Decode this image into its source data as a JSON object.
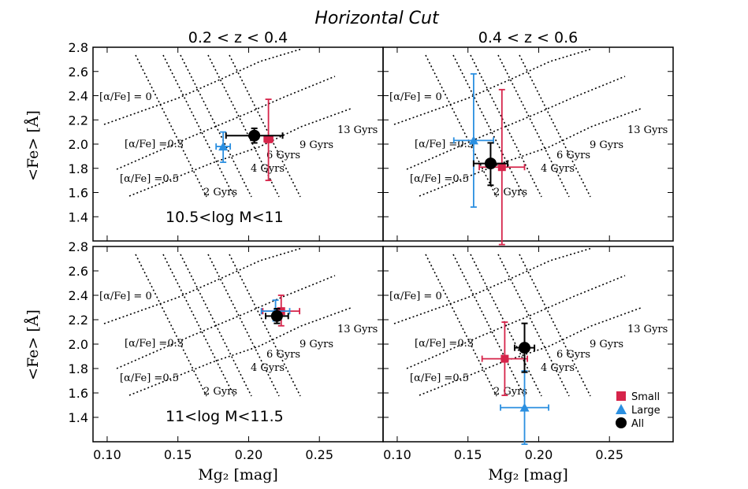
{
  "figure": {
    "title": "Horizontal Cut",
    "xlabel": "Mg₂ [mag]",
    "ylabel": "<Fe> [Å]"
  },
  "legend": {
    "placement": "lower-right of bottom-right panel",
    "entries": [
      {
        "label": "Small",
        "marker": "square",
        "color": "#d6244a"
      },
      {
        "label": "Large",
        "marker": "triangle",
        "color": "#2b8fe0"
      },
      {
        "label": "All",
        "marker": "circle",
        "color": "#000000"
      }
    ]
  },
  "grid_labels": {
    "alpha_fe": [
      "[α/Fe] = 0",
      "[α/Fe] =0.3",
      "[α/Fe] =0.5"
    ],
    "ages": [
      "2 Gyrs",
      "4 Gyrs",
      "6 Gyrs",
      "9 Gyrs",
      "13 Gyrs"
    ]
  },
  "chart_data": [
    {
      "type": "scatter",
      "column_title": "0.2 < z < 0.4",
      "annotation": "10.5<log M<11",
      "xlim": [
        0.09,
        0.295
      ],
      "ylim": [
        1.2,
        2.8
      ],
      "xticks": [
        "0.10",
        "0.15",
        "0.20",
        "0.25"
      ],
      "yticks": [
        "1.4",
        "1.6",
        "1.8",
        "2.0",
        "2.2",
        "2.4",
        "2.6",
        "2.8"
      ],
      "series": [
        {
          "name": "Small",
          "x": 0.214,
          "y": 2.04,
          "xerr": 0.003,
          "yerr": [
            0.34,
            0.33
          ]
        },
        {
          "name": "Large",
          "x": 0.182,
          "y": 1.98,
          "xerr": 0.005,
          "yerr": [
            0.13,
            0.12
          ]
        },
        {
          "name": "All",
          "x": 0.204,
          "y": 2.07,
          "xerr": 0.02,
          "yerr": [
            0.06,
            0.06
          ]
        }
      ]
    },
    {
      "type": "scatter",
      "column_title": "0.4 < z < 0.6",
      "annotation": "",
      "xlim": [
        0.09,
        0.295
      ],
      "ylim": [
        1.2,
        2.8
      ],
      "xticks": [
        "0.10",
        "0.15",
        "0.20",
        "0.25"
      ],
      "yticks": [],
      "series": [
        {
          "name": "Small",
          "x": 0.174,
          "y": 1.81,
          "xerr": 0.016,
          "yerr": [
            0.64,
            0.64
          ]
        },
        {
          "name": "Large",
          "x": 0.154,
          "y": 2.03,
          "xerr": 0.014,
          "yerr": [
            0.55,
            0.55
          ]
        },
        {
          "name": "All",
          "x": 0.166,
          "y": 1.84,
          "xerr": 0.012,
          "yerr": [
            0.18,
            0.17
          ]
        }
      ]
    },
    {
      "type": "scatter",
      "column_title": "",
      "annotation": "11<log M<11.5",
      "xlim": [
        0.09,
        0.295
      ],
      "ylim": [
        1.2,
        2.8
      ],
      "xticks": [
        "0.10",
        "0.15",
        "0.20",
        "0.25"
      ],
      "yticks": [
        "1.4",
        "1.6",
        "1.8",
        "2.0",
        "2.2",
        "2.4",
        "2.6",
        "2.8"
      ],
      "series": [
        {
          "name": "Small",
          "x": 0.223,
          "y": 2.27,
          "xerr": 0.013,
          "yerr": [
            0.12,
            0.13
          ]
        },
        {
          "name": "Large",
          "x": 0.219,
          "y": 2.27,
          "xerr": 0.01,
          "yerr": [
            0.08,
            0.09
          ]
        },
        {
          "name": "All",
          "x": 0.22,
          "y": 2.23,
          "xerr": 0.008,
          "yerr": [
            0.06,
            0.06
          ]
        }
      ]
    },
    {
      "type": "scatter",
      "column_title": "",
      "annotation": "",
      "xlim": [
        0.09,
        0.295
      ],
      "ylim": [
        1.2,
        2.8
      ],
      "xticks": [
        "0.10",
        "0.15",
        "0.20",
        "0.25"
      ],
      "yticks": [],
      "series": [
        {
          "name": "Small",
          "x": 0.176,
          "y": 1.88,
          "xerr": 0.016,
          "yerr": [
            0.3,
            0.3
          ]
        },
        {
          "name": "Large",
          "x": 0.19,
          "y": 1.48,
          "xerr": 0.017,
          "yerr": [
            0.3,
            0.3
          ]
        },
        {
          "name": "All",
          "x": 0.19,
          "y": 1.97,
          "xerr": 0.007,
          "yerr": [
            0.2,
            0.2
          ]
        }
      ]
    }
  ]
}
